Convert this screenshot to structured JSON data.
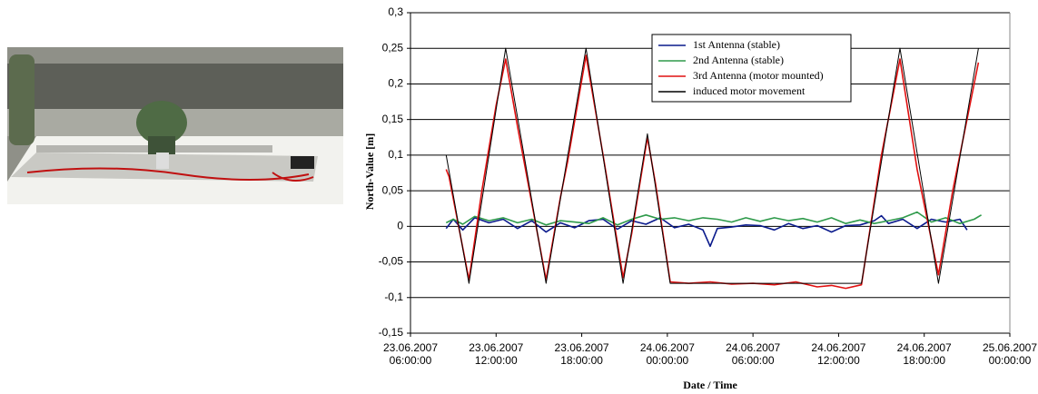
{
  "chart_data": {
    "type": "line",
    "xlabel": "Date / Time",
    "ylabel": "North-Value [m]",
    "xlim": [
      "2007-06-23T06:00",
      "2007-06-25T00:00"
    ],
    "xticks": [
      {
        "value": "2007-06-23T06:00",
        "label": "23.06.2007 06:00:00"
      },
      {
        "value": "2007-06-23T12:00",
        "label": "23.06.2007 12:00:00"
      },
      {
        "value": "2007-06-23T18:00",
        "label": "23.06.2007 18:00:00"
      },
      {
        "value": "2007-06-24T00:00",
        "label": "24.06.2007 00:00:00"
      },
      {
        "value": "2007-06-24T06:00",
        "label": "24.06.2007 06:00:00"
      },
      {
        "value": "2007-06-24T12:00",
        "label": "24.06.2007 12:00:00"
      },
      {
        "value": "2007-06-24T18:00",
        "label": "24.06.2007 18:00:00"
      },
      {
        "value": "2007-06-25T00:00",
        "label": "25.06.2007 00:00:00"
      }
    ],
    "ylim": [
      -0.15,
      0.3
    ],
    "yticks": [
      {
        "value": -0.15,
        "label": "-0,15"
      },
      {
        "value": -0.1,
        "label": "-0,1"
      },
      {
        "value": -0.05,
        "label": "-0,05"
      },
      0,
      {
        "value": 0.05,
        "label": "0,05"
      },
      {
        "value": 0.1,
        "label": "0,1"
      },
      {
        "value": 0.15,
        "label": "0,15"
      },
      {
        "value": 0.2,
        "label": "0,2"
      },
      {
        "value": 0.25,
        "label": "0,25"
      },
      {
        "value": 0.3,
        "label": "0,3"
      }
    ],
    "grid": true,
    "series": [
      {
        "name": "1st Antenna (stable)",
        "color": "#0a1a8c",
        "x": [
          "2007-06-23T08:30",
          "2007-06-23T09:00",
          "2007-06-23T09:40",
          "2007-06-23T10:30",
          "2007-06-23T11:30",
          "2007-06-23T12:30",
          "2007-06-23T13:30",
          "2007-06-23T14:30",
          "2007-06-23T15:30",
          "2007-06-23T16:30",
          "2007-06-23T17:30",
          "2007-06-23T18:30",
          "2007-06-23T19:30",
          "2007-06-23T20:30",
          "2007-06-23T21:30",
          "2007-06-23T22:30",
          "2007-06-23T23:30",
          "2007-06-24T00:30",
          "2007-06-24T01:30",
          "2007-06-24T02:30",
          "2007-06-24T03:00",
          "2007-06-24T03:30",
          "2007-06-24T04:30",
          "2007-06-24T05:30",
          "2007-06-24T06:30",
          "2007-06-24T07:30",
          "2007-06-24T08:30",
          "2007-06-24T09:30",
          "2007-06-24T10:30",
          "2007-06-24T11:30",
          "2007-06-24T12:30",
          "2007-06-24T13:30",
          "2007-06-24T14:30",
          "2007-06-24T15:00",
          "2007-06-24T15:30",
          "2007-06-24T16:30",
          "2007-06-24T17:30",
          "2007-06-24T18:30",
          "2007-06-24T19:30",
          "2007-06-24T20:30",
          "2007-06-24T21:00"
        ],
        "values": [
          -0.003,
          0.01,
          -0.005,
          0.012,
          0.005,
          0.01,
          -0.003,
          0.008,
          -0.008,
          0.005,
          -0.002,
          0.008,
          0.01,
          -0.004,
          0.008,
          0.003,
          0.012,
          -0.002,
          0.003,
          -0.005,
          -0.028,
          -0.003,
          -0.001,
          0.002,
          0.001,
          -0.005,
          0.004,
          -0.003,
          0.001,
          -0.008,
          0.001,
          0.002,
          0.008,
          0.015,
          0.004,
          0.01,
          -0.003,
          0.01,
          0.006,
          0.01,
          -0.005
        ]
      },
      {
        "name": "2nd Antenna (stable)",
        "color": "#2e9a4a",
        "x": [
          "2007-06-23T08:30",
          "2007-06-23T09:00",
          "2007-06-23T09:40",
          "2007-06-23T10:30",
          "2007-06-23T11:30",
          "2007-06-23T12:30",
          "2007-06-23T13:30",
          "2007-06-23T14:30",
          "2007-06-23T15:30",
          "2007-06-23T16:30",
          "2007-06-23T17:30",
          "2007-06-23T18:30",
          "2007-06-23T19:30",
          "2007-06-23T20:30",
          "2007-06-23T21:30",
          "2007-06-23T22:30",
          "2007-06-23T23:30",
          "2007-06-24T00:30",
          "2007-06-24T01:30",
          "2007-06-24T02:30",
          "2007-06-24T03:30",
          "2007-06-24T04:30",
          "2007-06-24T05:30",
          "2007-06-24T06:30",
          "2007-06-24T07:30",
          "2007-06-24T08:30",
          "2007-06-24T09:30",
          "2007-06-24T10:30",
          "2007-06-24T11:30",
          "2007-06-24T12:30",
          "2007-06-24T13:30",
          "2007-06-24T14:30",
          "2007-06-24T15:30",
          "2007-06-24T16:30",
          "2007-06-24T17:30",
          "2007-06-24T18:30",
          "2007-06-24T19:30",
          "2007-06-24T20:30",
          "2007-06-24T21:30",
          "2007-06-24T22:00"
        ],
        "values": [
          0.005,
          0.01,
          0.003,
          0.014,
          0.008,
          0.012,
          0.005,
          0.01,
          0.002,
          0.008,
          0.006,
          0.004,
          0.012,
          0.002,
          0.01,
          0.016,
          0.01,
          0.012,
          0.008,
          0.012,
          0.01,
          0.006,
          0.012,
          0.007,
          0.012,
          0.008,
          0.011,
          0.006,
          0.012,
          0.004,
          0.009,
          0.004,
          0.008,
          0.012,
          0.02,
          0.006,
          0.012,
          0.004,
          0.01,
          0.016
        ]
      },
      {
        "name": "3rd Antenna (motor mounted)",
        "color": "#e01010",
        "x": [
          "2007-06-23T08:30",
          "2007-06-23T08:42",
          "2007-06-23T10:06",
          "2007-06-23T11:00",
          "2007-06-23T12:00",
          "2007-06-23T12:40",
          "2007-06-23T13:30",
          "2007-06-23T15:30",
          "2007-06-23T16:30",
          "2007-06-23T17:00",
          "2007-06-23T18:18",
          "2007-06-23T19:30",
          "2007-06-23T20:54",
          "2007-06-23T21:30",
          "2007-06-23T22:36",
          "2007-06-23T23:10",
          "2007-06-24T00:12",
          "2007-06-24T01:30",
          "2007-06-24T03:00",
          "2007-06-24T04:30",
          "2007-06-24T06:00",
          "2007-06-24T07:30",
          "2007-06-24T09:00",
          "2007-06-24T10:30",
          "2007-06-24T11:30",
          "2007-06-24T12:30",
          "2007-06-24T13:36",
          "2007-06-24T15:00",
          "2007-06-24T16:18",
          "2007-06-24T17:30",
          "2007-06-24T19:00",
          "2007-06-24T20:00",
          "2007-06-24T21:48"
        ],
        "values": [
          0.08,
          0.07,
          -0.075,
          0.05,
          0.17,
          0.235,
          0.14,
          -0.075,
          0.04,
          0.09,
          0.24,
          0.1,
          -0.072,
          -0.01,
          0.125,
          0.06,
          -0.078,
          -0.08,
          -0.078,
          -0.081,
          -0.08,
          -0.082,
          -0.078,
          -0.085,
          -0.083,
          -0.087,
          -0.082,
          0.1,
          0.235,
          0.08,
          -0.068,
          0.05,
          0.23
        ]
      },
      {
        "name": "induced motor movement",
        "color": "#000000",
        "x": [
          "2007-06-23T08:30",
          "2007-06-23T10:06",
          "2007-06-23T12:40",
          "2007-06-23T15:30",
          "2007-06-23T18:18",
          "2007-06-23T20:54",
          "2007-06-23T22:36",
          "2007-06-24T00:12",
          "2007-06-24T13:36",
          "2007-06-24T16:18",
          "2007-06-24T19:00",
          "2007-06-24T21:48"
        ],
        "values": [
          0.1,
          -0.08,
          0.25,
          -0.08,
          0.25,
          -0.08,
          0.13,
          -0.08,
          -0.08,
          0.25,
          -0.08,
          0.25
        ]
      }
    ]
  }
}
